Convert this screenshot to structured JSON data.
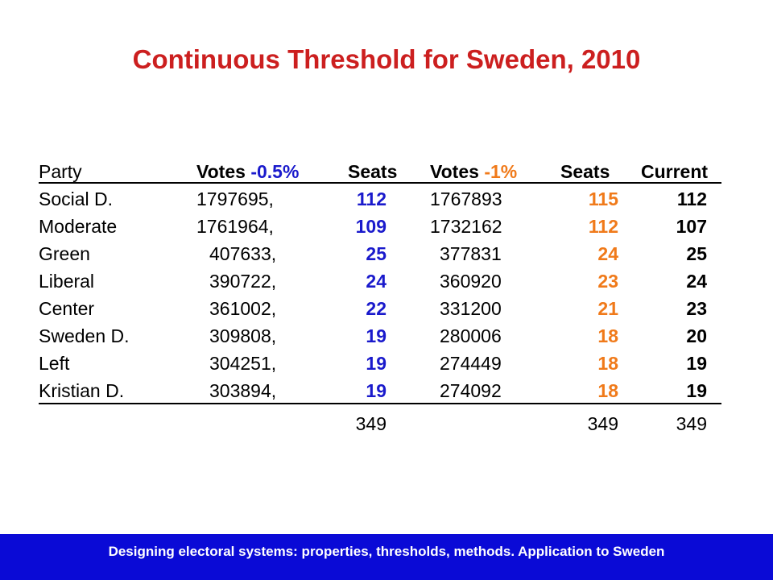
{
  "title": "Continuous Threshold for Sweden, 2010",
  "header": {
    "party": "Party",
    "votes1_prefix": "Votes ",
    "votes1_pct": "-0.5%",
    "seats1": "Seats",
    "votes2_prefix": "Votes ",
    "votes2_pct": "-1%",
    "seats2": "Seats",
    "current": "Current"
  },
  "rows": [
    {
      "party": "Social D.",
      "votes_05": "1797695,",
      "seats_05": "112",
      "votes_1": "1767893",
      "seats_1": "115",
      "current": "112"
    },
    {
      "party": "Moderate",
      "votes_05": "1761964,",
      "seats_05": "109",
      "votes_1": "1732162",
      "seats_1": "112",
      "current": "107"
    },
    {
      "party": "Green",
      "votes_05": "407633,",
      "seats_05": "25",
      "votes_1": "377831",
      "seats_1": "24",
      "current": "25"
    },
    {
      "party": "Liberal",
      "votes_05": "390722,",
      "seats_05": "24",
      "votes_1": "360920",
      "seats_1": "23",
      "current": "24"
    },
    {
      "party": "Center",
      "votes_05": "361002,",
      "seats_05": "22",
      "votes_1": "331200",
      "seats_1": "21",
      "current": "23"
    },
    {
      "party": "Sweden D.",
      "votes_05": "309808,",
      "seats_05": "19",
      "votes_1": "280006",
      "seats_1": "18",
      "current": "20"
    },
    {
      "party": "Left",
      "votes_05": "304251,",
      "seats_05": "19",
      "votes_1": "274449",
      "seats_1": "18",
      "current": "19"
    },
    {
      "party": "Kristian D.",
      "votes_05": "303894,",
      "seats_05": "19",
      "votes_1": "274092",
      "seats_1": "18",
      "current": "19"
    }
  ],
  "totals": {
    "seats_05": "349",
    "seats_1": "349",
    "current": "349"
  },
  "footer": "Designing electoral systems: properties, thresholds, methods. Application to Sweden",
  "colors": {
    "title": "#cc1f1f",
    "seats_05": "#1a1acc",
    "seats_1": "#f07a1a",
    "footer_bg": "#0a0ad6"
  }
}
